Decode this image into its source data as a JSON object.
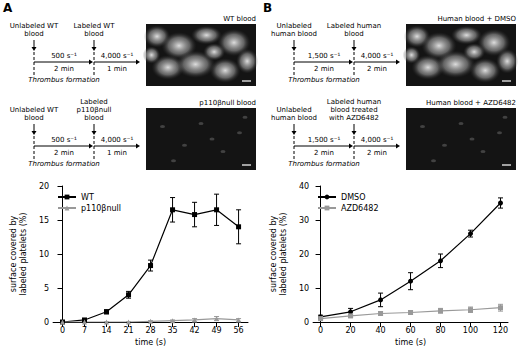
{
  "panels": [
    {
      "letter": "A",
      "protocols": [
        {
          "first": "Unlabeled WT blood",
          "second": "Labeled WT blood",
          "first_rate": "500 s⁻¹",
          "first_time": "2 min",
          "first_note": "Thrombus formation",
          "second_rate": "4,000 s⁻¹",
          "second_time": "1 min",
          "image": "WT blood"
        },
        {
          "first": "Unlabeled WT blood",
          "second": "Labeled p110βnull blood",
          "first_rate": "500 s⁻¹",
          "first_time": "2 min",
          "first_note": "Thrombus formation",
          "second_rate": "4,000 s⁻¹",
          "second_time": "1 min",
          "image": "p110βnull blood"
        }
      ]
    },
    {
      "letter": "B",
      "protocols": [
        {
          "first": "Unlabeled human blood",
          "second": "Labeled human blood",
          "first_rate": "1,500 s⁻¹",
          "first_time": "2 min",
          "first_note": "Thrombus formation",
          "second_rate": "4,000 s⁻¹",
          "second_time": "2 min",
          "image": "Human blood + DMSO"
        },
        {
          "first": "Unlabeled human blood",
          "second": "Labeled human blood treated with AZD6482",
          "first_rate": "1,500 s⁻¹",
          "first_time": "2 min",
          "first_note": "Thrombus formation",
          "second_rate": "4,000 s⁻¹",
          "second_time": "2 min",
          "image": "Human blood + AZD6482"
        }
      ]
    }
  ],
  "chart_data": [
    {
      "type": "line",
      "x_label": "time (s)",
      "y_label": "surface covered by labeled platelets (%)",
      "x": [
        0,
        7,
        14,
        21,
        28,
        35,
        42,
        49,
        56
      ],
      "xlim": [
        -3,
        59
      ],
      "xticks": [
        0,
        7,
        14,
        21,
        28,
        35,
        42,
        49,
        56
      ],
      "ylim": [
        0,
        20
      ],
      "yticks": [
        0,
        5,
        10,
        15,
        20
      ],
      "legend": "upper left",
      "series": [
        {
          "name": "WT",
          "color": "#000000",
          "marker": "square",
          "values": [
            0,
            0.3,
            1.5,
            4,
            8.3,
            16.5,
            15.8,
            16.5,
            14
          ],
          "errors": [
            0,
            0.1,
            0.3,
            0.5,
            0.8,
            1.8,
            1.8,
            2.3,
            2.5
          ]
        },
        {
          "name": "p110βnull",
          "color": "#999999",
          "marker": "triangle",
          "values": [
            0,
            0,
            0,
            0,
            0.1,
            0.2,
            0.3,
            0.5,
            0.3
          ],
          "errors": [
            0,
            0,
            0,
            0,
            0.1,
            0.1,
            0.2,
            0.3,
            0.2
          ]
        }
      ]
    },
    {
      "type": "line",
      "x_label": "time (s)",
      "y_label": "surface covered by labeled platelets (%)",
      "x": [
        0,
        20,
        40,
        60,
        80,
        100,
        120
      ],
      "xlim": [
        -5,
        125
      ],
      "xticks": [
        0,
        20,
        40,
        60,
        80,
        100,
        120
      ],
      "ylim": [
        0,
        40
      ],
      "yticks": [
        0,
        10,
        20,
        30,
        40
      ],
      "legend": "upper left",
      "series": [
        {
          "name": "DMSO",
          "color": "#000000",
          "marker": "circle",
          "values": [
            1.5,
            3,
            6.5,
            12,
            18,
            26,
            35
          ],
          "errors": [
            0.5,
            1,
            2,
            2.5,
            2,
            1,
            1.5
          ]
        },
        {
          "name": "AZD6482",
          "color": "#999999",
          "marker": "square",
          "values": [
            1,
            1.8,
            2.5,
            2.8,
            3.3,
            3.6,
            4.2
          ],
          "errors": [
            0.3,
            0.5,
            0.5,
            0.5,
            0.7,
            0.8,
            1
          ]
        }
      ]
    }
  ]
}
